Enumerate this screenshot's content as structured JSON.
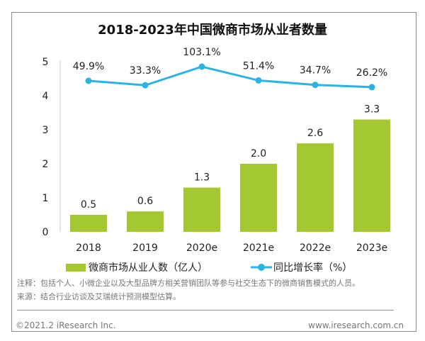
{
  "chart_data": {
    "type": "bar",
    "title": "2018-2023年中国微商市场从业者数量",
    "categories": [
      "2018",
      "2019",
      "2020e",
      "2021e",
      "2022e",
      "2023e"
    ],
    "ylim": [
      0,
      5
    ],
    "yticks": [
      "0",
      "1",
      "2",
      "3",
      "4",
      "5"
    ],
    "grid": false,
    "legend_placement": "bottom",
    "series": [
      {
        "name": "微商市场从业人数（亿人）",
        "type": "bar",
        "color": "#a4c832",
        "values": [
          0.5,
          0.6,
          1.3,
          2.0,
          2.6,
          3.3
        ],
        "labels": [
          "0.5",
          "0.6",
          "1.3",
          "2.0",
          "2.6",
          "3.3"
        ]
      },
      {
        "name": "同比增长率（%）",
        "type": "line",
        "color": "#2ab4e4",
        "values": [
          49.9,
          33.3,
          103.1,
          51.4,
          34.7,
          26.2
        ],
        "labels": [
          "49.9%",
          "33.3%",
          "103.1%",
          "51.4%",
          "34.7%",
          "26.2%"
        ]
      }
    ]
  },
  "notes": [
    "注释：包括个人、小微企业以及大型品牌方相关营销团队等参与社交生态下的微商销售模式的人员。",
    "来源：结合行业访谈及艾瑞统计预测模型估算。"
  ],
  "footer": {
    "copyright": "©2021.2 iResearch Inc.",
    "website": "www.iresearch.com.cn"
  }
}
